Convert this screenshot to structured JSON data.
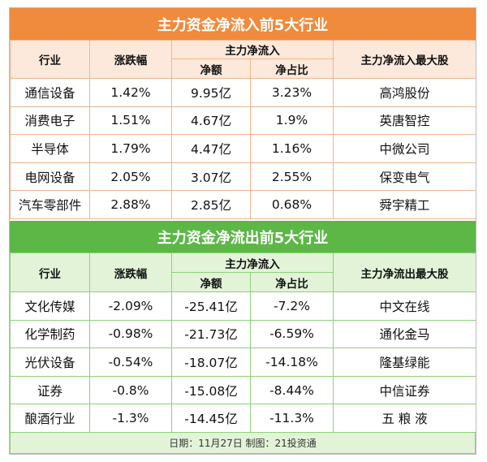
{
  "colors": {
    "inflow_accent": "#f08a3c",
    "outflow_accent": "#5cb747",
    "inflow_header_bg": "#fde9dc",
    "outflow_header_bg": "#e2f3d8"
  },
  "inflow": {
    "title": "主力资金净流入前5大行业",
    "headers": {
      "industry": "行业",
      "change": "涨跌幅",
      "main_group": "主力净流入",
      "amount": "净额",
      "ratio": "净占比",
      "top_stock": "主力净流入最大股"
    },
    "rows": [
      {
        "industry": "通信设备",
        "change": "1.42%",
        "amount": "9.95亿",
        "ratio": "3.23%",
        "top_stock": "高鸿股份"
      },
      {
        "industry": "消费电子",
        "change": "1.51%",
        "amount": "4.67亿",
        "ratio": "1.9%",
        "top_stock": "英唐智控"
      },
      {
        "industry": "半导体",
        "change": "1.79%",
        "amount": "4.47亿",
        "ratio": "1.16%",
        "top_stock": "中微公司"
      },
      {
        "industry": "电网设备",
        "change": "2.05%",
        "amount": "3.07亿",
        "ratio": "2.55%",
        "top_stock": "保变电气"
      },
      {
        "industry": "汽车零部件",
        "change": "2.88%",
        "amount": "2.85亿",
        "ratio": "0.68%",
        "top_stock": "舜宇精工"
      }
    ]
  },
  "outflow": {
    "title": "主力资金净流出前5大行业",
    "headers": {
      "industry": "行业",
      "change": "涨跌幅",
      "main_group": "主力净流入",
      "amount": "净额",
      "ratio": "净占比",
      "top_stock": "主力净流出最大股"
    },
    "rows": [
      {
        "industry": "文化传媒",
        "change": "-2.09%",
        "amount": "-25.41亿",
        "ratio": "-7.2%",
        "top_stock": "中文在线"
      },
      {
        "industry": "化学制药",
        "change": "-0.98%",
        "amount": "-21.73亿",
        "ratio": "-6.59%",
        "top_stock": "通化金马"
      },
      {
        "industry": "光伏设备",
        "change": "-0.54%",
        "amount": "-18.07亿",
        "ratio": "-14.18%",
        "top_stock": "隆基绿能"
      },
      {
        "industry": "证券",
        "change": "-0.8%",
        "amount": "-15.08亿",
        "ratio": "-8.44%",
        "top_stock": "中信证券"
      },
      {
        "industry": "酿酒行业",
        "change": "-1.3%",
        "amount": "-14.45亿",
        "ratio": "-11.3%",
        "top_stock": "五 粮 液"
      }
    ]
  },
  "footer": "日期：11月27日 制图：21投资通"
}
